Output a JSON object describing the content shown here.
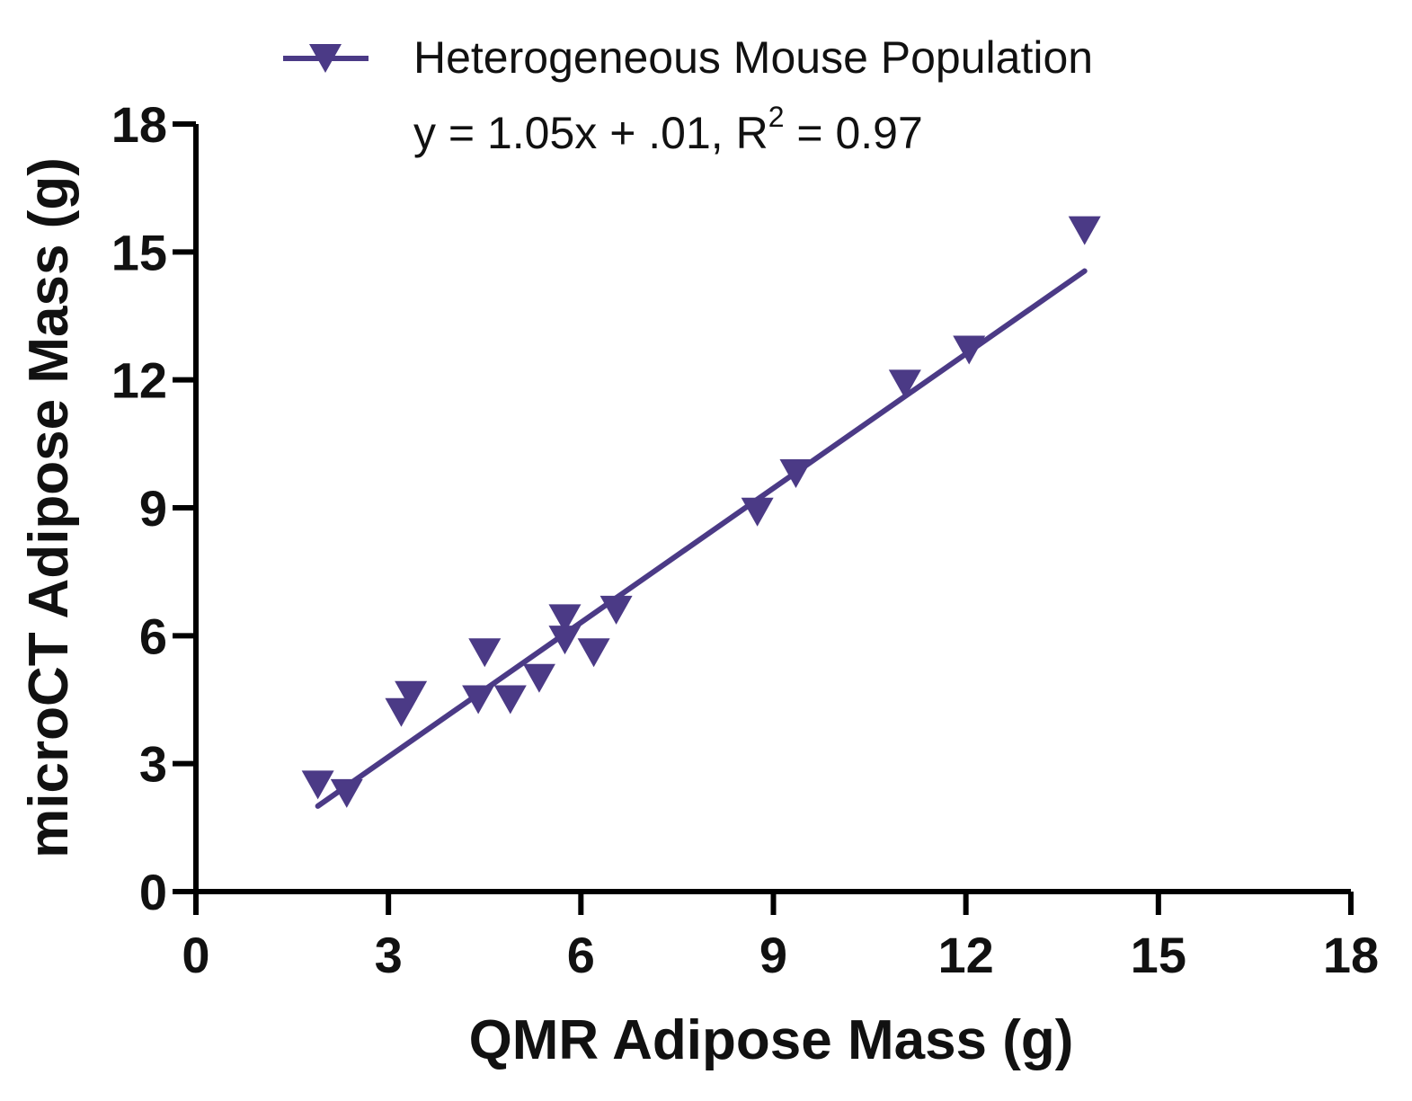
{
  "chart_data": {
    "type": "scatter",
    "title": "",
    "xlabel": "QMR Adipose Mass (g)",
    "ylabel": "microCT Adipose Mass (g)",
    "xlim": [
      0,
      18
    ],
    "ylim": [
      0,
      18
    ],
    "xticks": [
      "0",
      "3",
      "6",
      "9",
      "12",
      "15",
      "18"
    ],
    "yticks": [
      "0",
      "3",
      "6",
      "9",
      "12",
      "15",
      "18"
    ],
    "legend_position": "top",
    "series": [
      {
        "name": "Heterogeneous Mouse Population",
        "color": "#4b3a86",
        "marker": "triangle-down",
        "points": [
          {
            "x": 1.9,
            "y": 2.5
          },
          {
            "x": 2.35,
            "y": 2.3
          },
          {
            "x": 3.2,
            "y": 4.2
          },
          {
            "x": 3.35,
            "y": 4.6
          },
          {
            "x": 4.4,
            "y": 4.5
          },
          {
            "x": 4.5,
            "y": 5.6
          },
          {
            "x": 4.9,
            "y": 4.5
          },
          {
            "x": 5.35,
            "y": 5.0
          },
          {
            "x": 5.75,
            "y": 6.4
          },
          {
            "x": 5.75,
            "y": 5.9
          },
          {
            "x": 6.2,
            "y": 5.6
          },
          {
            "x": 6.55,
            "y": 6.6
          },
          {
            "x": 8.75,
            "y": 8.9
          },
          {
            "x": 9.35,
            "y": 9.8
          },
          {
            "x": 11.05,
            "y": 11.9
          },
          {
            "x": 12.05,
            "y": 12.7
          },
          {
            "x": 13.85,
            "y": 15.5
          }
        ]
      }
    ],
    "regression": {
      "equation_prefix": "y = 1.05x + .01, R",
      "equation_superscript": "2",
      "equation_suffix": " = 0.97",
      "slope": 1.05,
      "intercept": 0.01,
      "x_start": 1.9,
      "x_end": 13.85
    }
  }
}
